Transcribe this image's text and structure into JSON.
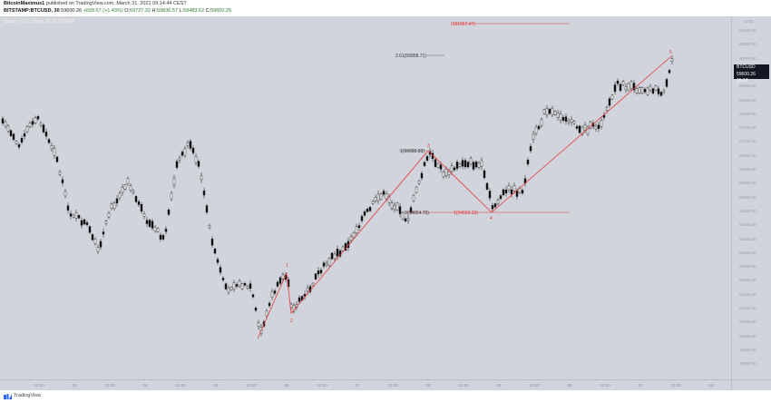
{
  "header": {
    "author": "BitcoinMaximus1",
    "published": "published on TradingView.com, March 31, 2021 09:14:44 CEST",
    "symbol": "BITSTAMP:BTCUSD, 30",
    "last": "59600.26",
    "change": "+839.67 (+1.43%)",
    "ohlc": {
      "o_label": "O:",
      "o": "59727.33",
      "h_label": "H:",
      "h": "59836.57",
      "l_label": "L:",
      "l": "59483.62",
      "c_label": "C:",
      "c": "59600.26"
    }
  },
  "chart": {
    "legend_label": "Bitcoin / U.S. Dollar, 30, BITSTAMP",
    "currency": "USD",
    "price_label": {
      "symbol": "BTCUSD",
      "price": "59600.26",
      "countdown": "15:17"
    },
    "y_ticks": [
      "61000.00",
      "60500.00",
      "60000.00",
      "59500.00",
      "59000.00",
      "58500.00",
      "58000.00",
      "57500.00",
      "57000.00",
      "56500.00",
      "56000.00",
      "55500.00",
      "55000.00",
      "54500.00",
      "54000.00",
      "53500.00",
      "53000.00",
      "52500.00",
      "52000.00",
      "51500.00",
      "51000.00",
      "50500.00",
      "50000.00",
      "49500.00",
      "49000.00"
    ],
    "x_ticks": [
      "12:00",
      "23",
      "12:00",
      "24",
      "12:00",
      "25",
      "12:00",
      "26",
      "12:00",
      "27",
      "12:00",
      "28",
      "12:00",
      "29",
      "12:00",
      "30",
      "12:00",
      "31",
      "12:00",
      "Apr"
    ],
    "annotations": {
      "fib_0": "0(61007.47)",
      "fib_261": "2.61(59958.71)",
      "fib_1": "1(56686.93)",
      "fib_0_lower": "0(54654.76)",
      "fib_1_lower": "1(54660.33)"
    },
    "wave_labels": [
      "1",
      "2",
      "3",
      "4",
      "5"
    ],
    "colors": {
      "background": "#d1d4dc",
      "wave_line": "#e53935",
      "candle": "#111111",
      "price_badge": "#131722"
    }
  },
  "footer": {
    "brand": "TradingView",
    "logo": "tradingview-logo-icon"
  }
}
